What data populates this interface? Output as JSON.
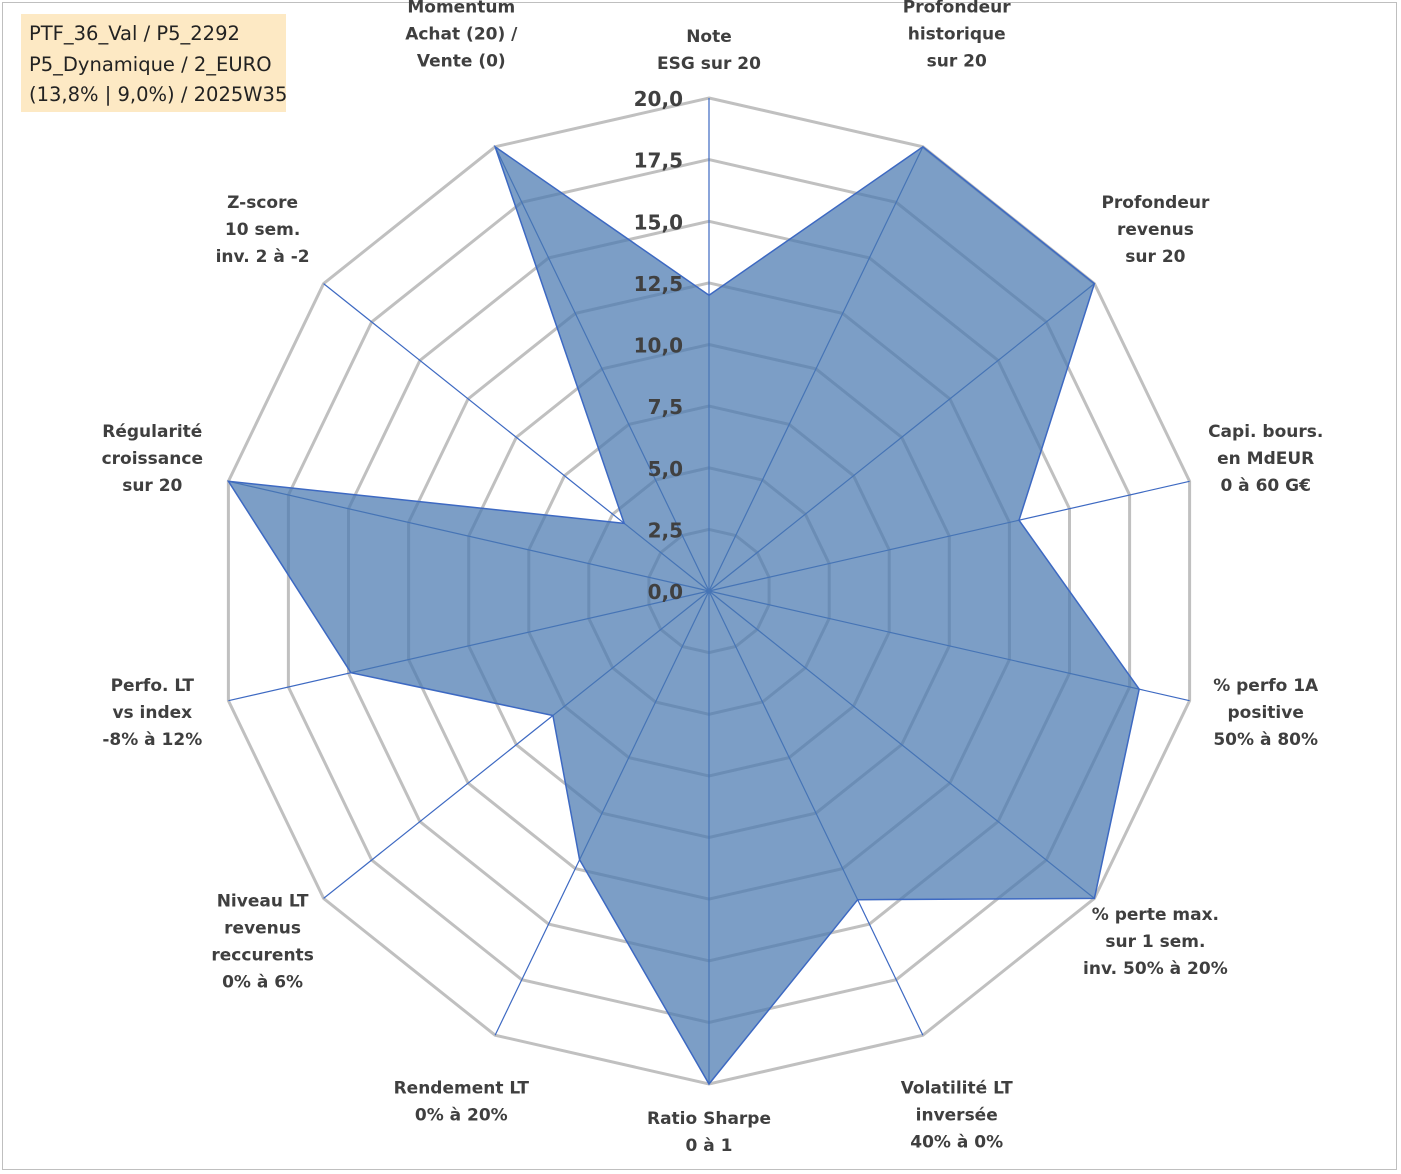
{
  "info": {
    "line1": "PTF_36_Val / P5_2292",
    "line2": "P5_Dynamique / 2_EURO",
    "line3": "(13,8% | 9,0%) / 2025W35"
  },
  "chart_data": {
    "type": "radar",
    "rlim": [
      0,
      20
    ],
    "ticks": [
      "0,0",
      "2,5",
      "5,0",
      "7,5",
      "10,0",
      "12,5",
      "15,0",
      "17,5",
      "20,0"
    ],
    "grid": true,
    "axes": [
      [
        "Note",
        "ESG sur 20"
      ],
      [
        "Profondeur",
        "historique",
        "sur 20"
      ],
      [
        "Profondeur",
        "revenus",
        "sur 20"
      ],
      [
        "Capi. bours.",
        "en MdEUR",
        "0 à 60 G€"
      ],
      [
        "% perfo 1A",
        "positive",
        "50% à 80%"
      ],
      [
        "% perte max.",
        "sur 1 sem.",
        "inv. 50% à 20%"
      ],
      [
        "Volatilité LT",
        "inversée",
        "40% à 0%"
      ],
      [
        "Ratio Sharpe",
        "0 à 1"
      ],
      [
        "Rendement LT",
        "0% à 20%"
      ],
      [
        "Niveau LT",
        "revenus",
        "reccurents",
        "0% à 6%"
      ],
      [
        "Perfo. LT",
        "vs index",
        "-8% à 12%"
      ],
      [
        "Régularité",
        "croissance",
        "sur 20"
      ],
      [
        "Z-score",
        "10 sem.",
        "inv. 2 à -2"
      ],
      [
        "Momentum",
        "Achat (20) /",
        "Vente (0)"
      ]
    ],
    "values": [
      12.0,
      20.0,
      20.0,
      12.9,
      17.9,
      20.0,
      13.9,
      20.0,
      12.1,
      8.1,
      14.9,
      20.0,
      4.4,
      20.0
    ],
    "colors": {
      "fill": "#4a78b0",
      "stroke": "#3d69c2",
      "grid": "#c0c0c0"
    }
  }
}
